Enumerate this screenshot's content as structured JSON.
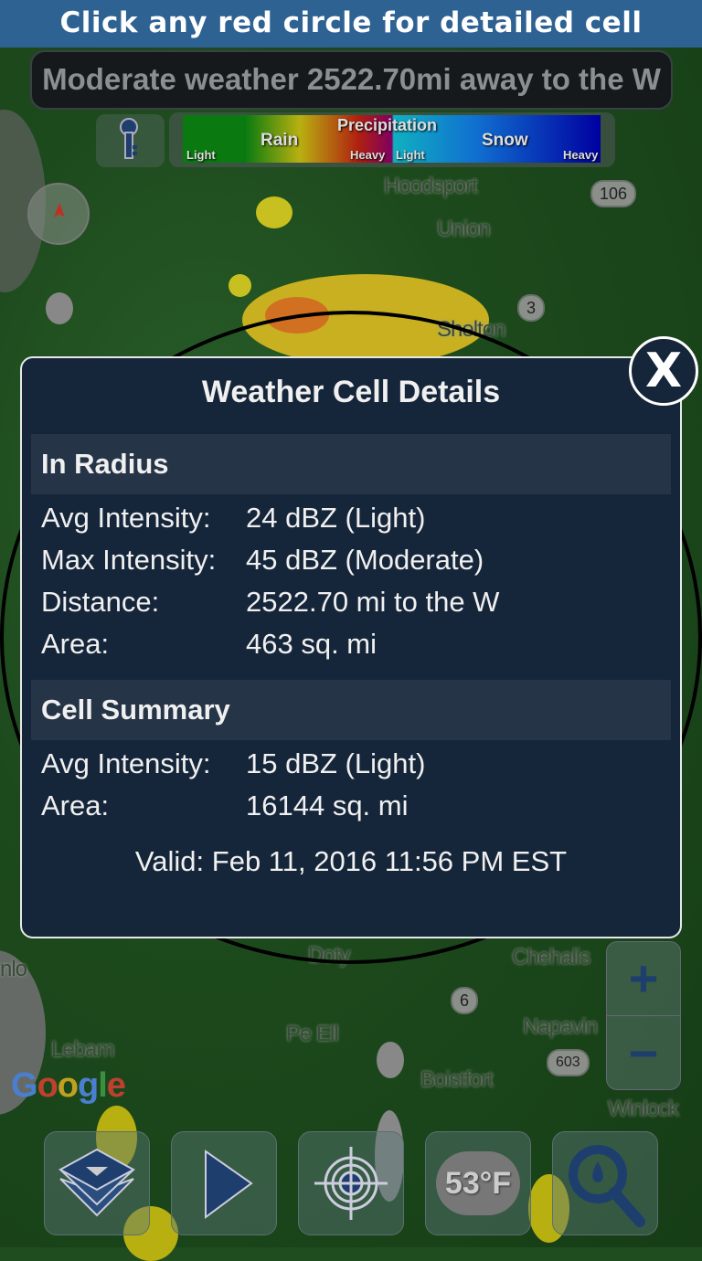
{
  "header": {
    "text": "Click any red circle for detailed cell anaysis",
    "color": "#2e6293"
  },
  "status": {
    "text": "Moderate weather 2522.70mi away to the W"
  },
  "legend": {
    "title": "Precipitation",
    "rain": "Rain",
    "snow": "Snow",
    "rain_light": "Light",
    "rain_heavy": "Heavy",
    "snow_light": "Light",
    "snow_heavy": "Heavy"
  },
  "map": {
    "labels": [
      "Hoodsport",
      "Union",
      "Shelton",
      "Doty",
      "Pe Ell",
      "Lebam",
      "Boistfort",
      "Chehalis",
      "Napavin",
      "Winlock",
      "nlo"
    ],
    "shields": [
      "106",
      "3",
      "6",
      "603"
    ],
    "google": "Google"
  },
  "dialog": {
    "title": "Weather Cell Details",
    "close": "X",
    "in_radius": {
      "heading": "In Radius",
      "rows": [
        {
          "k": "Avg Intensity:",
          "v": "24 dBZ (Light)"
        },
        {
          "k": "Max Intensity:",
          "v": "45 dBZ (Moderate)"
        },
        {
          "k": "Distance:",
          "v": "2522.70 mi to the W"
        },
        {
          "k": "Area:",
          "v": "463 sq. mi"
        }
      ]
    },
    "summary": {
      "heading": "Cell Summary",
      "rows": [
        {
          "k": "Avg Intensity:",
          "v": "15 dBZ (Light)"
        },
        {
          "k": "Area:",
          "v": "16144 sq. mi"
        }
      ]
    },
    "valid": "Valid: Feb 11, 2016 11:56 PM EST"
  },
  "toolbar": {
    "temperature": "53°F",
    "icons": [
      "layers-icon",
      "play-icon",
      "locate-icon",
      "weather-icon",
      "search-precip-icon"
    ]
  },
  "zoom": {
    "plus": "+",
    "minus": "−"
  }
}
